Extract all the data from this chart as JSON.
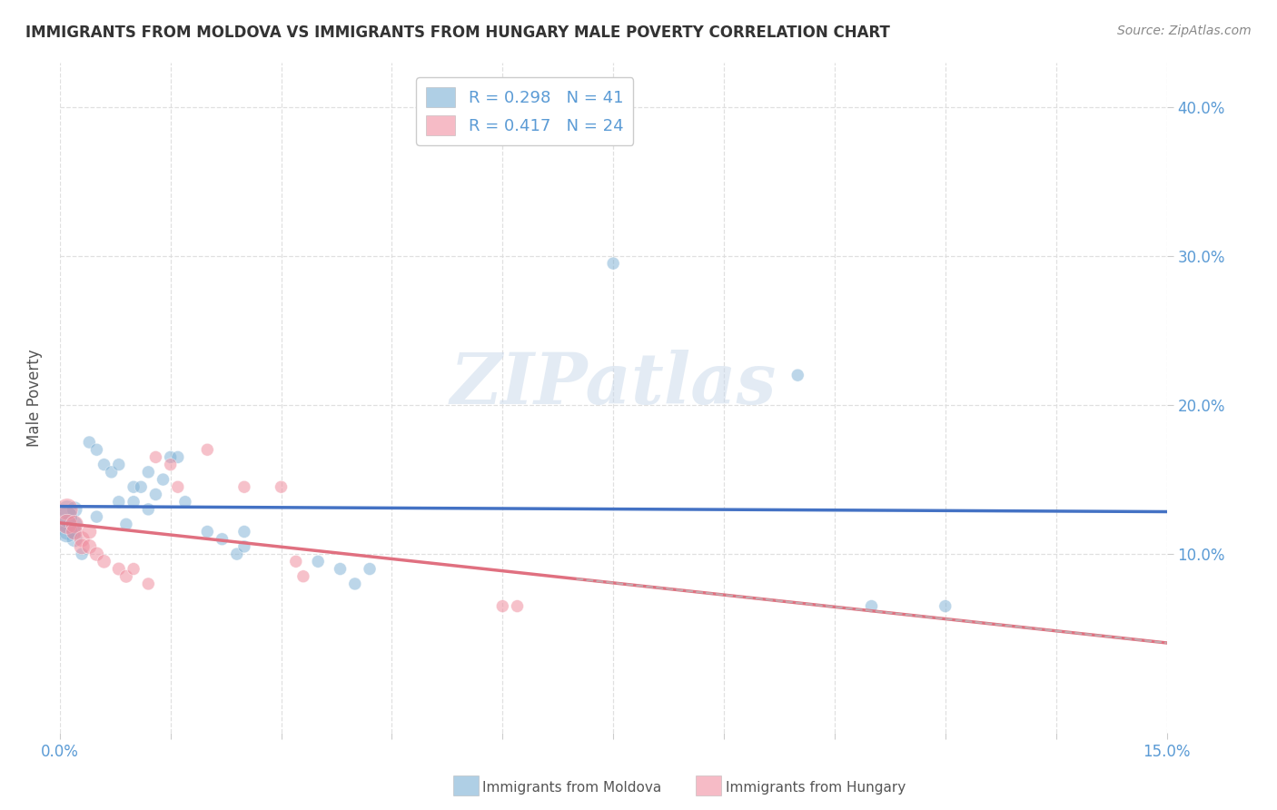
{
  "title": "IMMIGRANTS FROM MOLDOVA VS IMMIGRANTS FROM HUNGARY MALE POVERTY CORRELATION CHART",
  "source": "Source: ZipAtlas.com",
  "ylabel": "Male Poverty",
  "xlim": [
    0.0,
    0.15
  ],
  "ylim": [
    -0.02,
    0.43
  ],
  "watermark_text": "ZIPatlas",
  "moldova_color": "#7bafd4",
  "hungary_color": "#f08fa0",
  "moldova_trendline_color": "#4472c4",
  "hungary_trendline_color": "#e07080",
  "background_color": "#ffffff",
  "grid_color": "#dddddd",
  "moldova_points": [
    [
      0.002,
      0.115
    ],
    [
      0.003,
      0.1
    ],
    [
      0.004,
      0.175
    ],
    [
      0.005,
      0.125
    ],
    [
      0.005,
      0.17
    ],
    [
      0.006,
      0.16
    ],
    [
      0.007,
      0.155
    ],
    [
      0.008,
      0.135
    ],
    [
      0.008,
      0.16
    ],
    [
      0.009,
      0.12
    ],
    [
      0.01,
      0.135
    ],
    [
      0.01,
      0.145
    ],
    [
      0.011,
      0.145
    ],
    [
      0.012,
      0.155
    ],
    [
      0.012,
      0.13
    ],
    [
      0.013,
      0.14
    ],
    [
      0.014,
      0.15
    ],
    [
      0.015,
      0.165
    ],
    [
      0.016,
      0.165
    ],
    [
      0.017,
      0.135
    ],
    [
      0.001,
      0.13
    ],
    [
      0.001,
      0.12
    ],
    [
      0.001,
      0.115
    ],
    [
      0.002,
      0.11
    ],
    [
      0.002,
      0.12
    ],
    [
      0.002,
      0.13
    ],
    [
      0.001,
      0.115
    ],
    [
      0.001,
      0.125
    ],
    [
      0.02,
      0.115
    ],
    [
      0.022,
      0.11
    ],
    [
      0.024,
      0.1
    ],
    [
      0.025,
      0.105
    ],
    [
      0.025,
      0.115
    ],
    [
      0.035,
      0.095
    ],
    [
      0.038,
      0.09
    ],
    [
      0.04,
      0.08
    ],
    [
      0.042,
      0.09
    ],
    [
      0.075,
      0.295
    ],
    [
      0.1,
      0.22
    ],
    [
      0.11,
      0.065
    ],
    [
      0.12,
      0.065
    ]
  ],
  "hungary_points": [
    [
      0.001,
      0.13
    ],
    [
      0.001,
      0.12
    ],
    [
      0.002,
      0.12
    ],
    [
      0.002,
      0.115
    ],
    [
      0.003,
      0.11
    ],
    [
      0.003,
      0.105
    ],
    [
      0.004,
      0.115
    ],
    [
      0.004,
      0.105
    ],
    [
      0.005,
      0.1
    ],
    [
      0.006,
      0.095
    ],
    [
      0.008,
      0.09
    ],
    [
      0.009,
      0.085
    ],
    [
      0.01,
      0.09
    ],
    [
      0.012,
      0.08
    ],
    [
      0.013,
      0.165
    ],
    [
      0.015,
      0.16
    ],
    [
      0.016,
      0.145
    ],
    [
      0.02,
      0.17
    ],
    [
      0.025,
      0.145
    ],
    [
      0.03,
      0.145
    ],
    [
      0.032,
      0.095
    ],
    [
      0.033,
      0.085
    ],
    [
      0.06,
      0.065
    ],
    [
      0.062,
      0.065
    ]
  ],
  "moldova_marker_sizes": [
    120,
    100,
    100,
    100,
    100,
    100,
    100,
    100,
    100,
    100,
    100,
    100,
    100,
    100,
    100,
    100,
    100,
    100,
    100,
    100,
    200,
    180,
    170,
    160,
    160,
    160,
    300,
    280,
    100,
    100,
    100,
    100,
    100,
    100,
    100,
    100,
    100,
    100,
    100,
    100,
    100
  ],
  "hungary_marker_sizes": [
    300,
    250,
    200,
    180,
    160,
    160,
    140,
    140,
    130,
    120,
    110,
    110,
    100,
    100,
    100,
    100,
    100,
    100,
    100,
    100,
    100,
    100,
    100,
    100
  ]
}
